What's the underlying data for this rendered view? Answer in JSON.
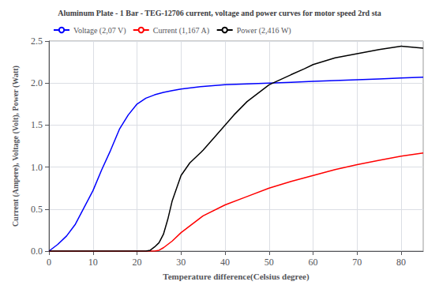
{
  "chart_data": {
    "type": "line",
    "title": "Aluminum Plate - 1 Bar - TEG-12706 current, voltage and power curves for motor speed 2rd sta",
    "xlabel": "Temperature difference(Celsius degree)",
    "ylabel": "Current (Ampere), Voltage (Volt), Power (Watt)",
    "xlim": [
      0,
      85
    ],
    "ylim": [
      0,
      2.5
    ],
    "xticks": [
      0,
      10,
      20,
      30,
      40,
      50,
      60,
      70,
      80
    ],
    "yticks": [
      {
        "value": 0,
        "label": "0.0"
      },
      0.5,
      {
        "value": 1.0,
        "label": "1.0"
      },
      1.5,
      {
        "value": 2.0,
        "label": "2.0"
      },
      2.5
    ],
    "grid": true,
    "legend": "upper left",
    "series": [
      {
        "name": "Voltage (2,07 V)",
        "color": "blue",
        "x": [
          0,
          2,
          4,
          6,
          8,
          10,
          12,
          14,
          16,
          18,
          20,
          22,
          24,
          26,
          28,
          30,
          35,
          40,
          45,
          50,
          55,
          60,
          65,
          70,
          75,
          80,
          85
        ],
        "values": [
          0.0,
          0.08,
          0.18,
          0.32,
          0.52,
          0.72,
          0.97,
          1.2,
          1.45,
          1.62,
          1.75,
          1.82,
          1.86,
          1.89,
          1.91,
          1.93,
          1.96,
          1.98,
          1.99,
          2.0,
          2.01,
          2.02,
          2.03,
          2.04,
          2.05,
          2.06,
          2.07
        ]
      },
      {
        "name": "Current (1,167 A)",
        "color": "red",
        "x": [
          0,
          5,
          10,
          15,
          20,
          22,
          24,
          25,
          26,
          28,
          30,
          35,
          40,
          45,
          50,
          55,
          60,
          65,
          70,
          75,
          80,
          85
        ],
        "values": [
          0,
          0,
          0,
          0,
          0,
          0,
          0,
          0.01,
          0.04,
          0.12,
          0.22,
          0.42,
          0.55,
          0.65,
          0.75,
          0.83,
          0.9,
          0.97,
          1.03,
          1.08,
          1.13,
          1.167
        ]
      },
      {
        "name": "Power (2,416 W)",
        "color": "black",
        "x": [
          0,
          5,
          10,
          15,
          20,
          22,
          23,
          24,
          25,
          26,
          27,
          28,
          30,
          32,
          35,
          38,
          40,
          42,
          45,
          48,
          50,
          55,
          58,
          60,
          65,
          70,
          75,
          80,
          85
        ],
        "values": [
          0,
          0,
          0,
          0,
          0,
          0,
          0.01,
          0.05,
          0.1,
          0.2,
          0.38,
          0.6,
          0.9,
          1.05,
          1.2,
          1.38,
          1.5,
          1.62,
          1.78,
          1.9,
          1.98,
          2.1,
          2.17,
          2.22,
          2.3,
          2.35,
          2.4,
          2.44,
          2.416
        ]
      }
    ]
  }
}
